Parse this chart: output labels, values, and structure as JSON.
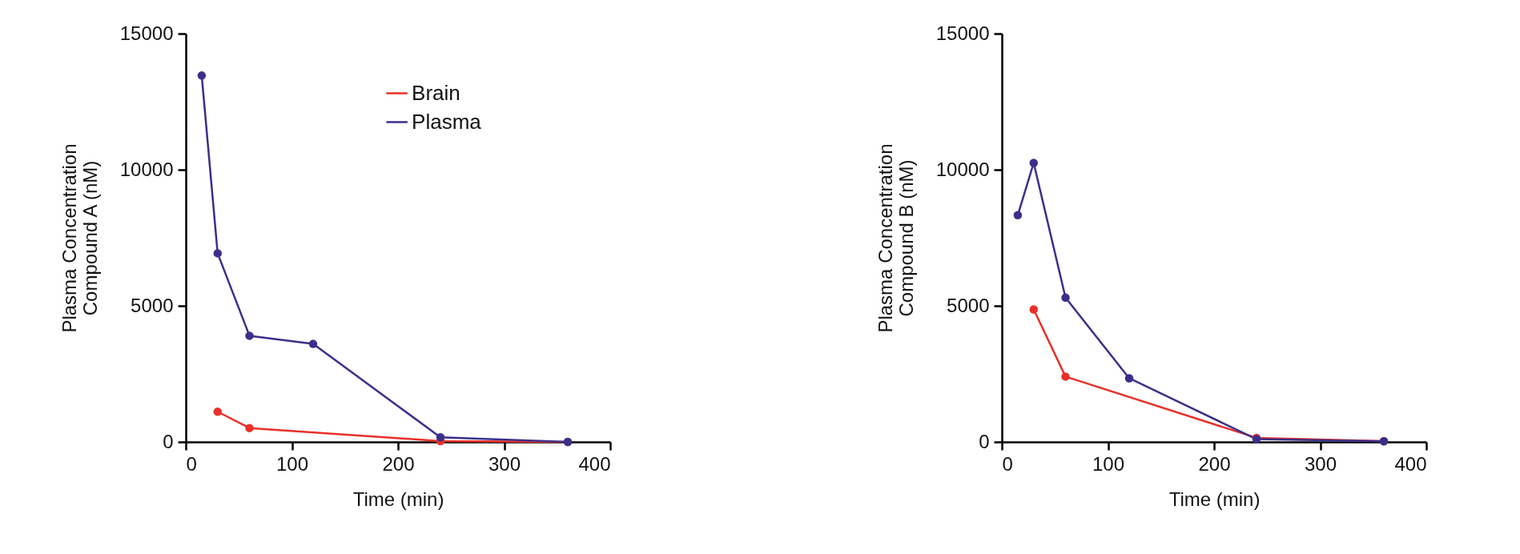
{
  "chart_data": [
    {
      "type": "line",
      "xlabel": "Time (min)",
      "ylabel": "Plasma Concentration\nCompound A (nM)",
      "xlim": [
        0,
        400
      ],
      "xticks": [
        0,
        100,
        200,
        300,
        400
      ],
      "ylim": [
        0,
        15000
      ],
      "yticks": [
        0,
        5000,
        10000,
        15000
      ],
      "grid": false,
      "legend": "top right",
      "marker": "circle",
      "line_style": "solid",
      "series": [
        {
          "name": "Brain",
          "color": "#e8302a",
          "x": [
            30,
            60,
            240,
            360
          ],
          "values": [
            1110,
            510,
            30,
            0
          ]
        },
        {
          "name": "Plasma",
          "color": "#3b2f8a",
          "x": [
            15,
            30,
            60,
            120,
            240,
            360
          ],
          "values": [
            13460,
            6930,
            3900,
            3600,
            170,
            0
          ]
        }
      ]
    },
    {
      "type": "line",
      "xlabel": "Time (min)",
      "ylabel": "Plasma Concentration\nCompound B (nM)",
      "xlim": [
        0,
        400
      ],
      "xticks": [
        0,
        100,
        200,
        300,
        400
      ],
      "ylim": [
        0,
        15000
      ],
      "yticks": [
        0,
        5000,
        10000,
        15000
      ],
      "grid": false,
      "legend": "top right",
      "marker": "circle",
      "line_style": "solid",
      "series": [
        {
          "name": "Brain",
          "color": "#e8302a",
          "x": [
            30,
            60,
            240,
            360
          ],
          "values": [
            4870,
            2400,
            150,
            30
          ]
        },
        {
          "name": "Plasma",
          "color": "#3b2f8a",
          "x": [
            15,
            30,
            60,
            120,
            240,
            360
          ],
          "values": [
            8330,
            10250,
            5300,
            2340,
            100,
            20
          ]
        }
      ]
    }
  ]
}
